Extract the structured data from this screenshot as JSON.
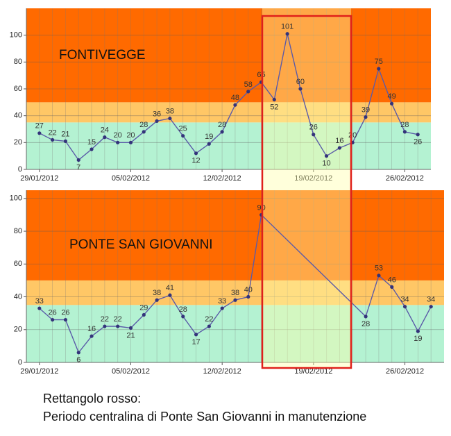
{
  "chart_data": [
    {
      "type": "line",
      "title": "FONTIVEGGE",
      "x": [
        "29/01/2012",
        "30/01/2012",
        "31/01/2012",
        "01/02/2012",
        "02/02/2012",
        "03/02/2012",
        "04/02/2012",
        "05/02/2012",
        "06/02/2012",
        "07/02/2012",
        "08/02/2012",
        "09/02/2012",
        "10/02/2012",
        "11/02/2012",
        "12/02/2012",
        "13/02/2012",
        "14/02/2012",
        "15/02/2012",
        "16/02/2012",
        "17/02/2012",
        "18/02/2012",
        "19/02/2012",
        "20/02/2012",
        "21/02/2012",
        "22/02/2012",
        "23/02/2012",
        "24/02/2012",
        "25/02/2012",
        "26/02/2012",
        "27/02/2012"
      ],
      "values": [
        27,
        22,
        21,
        7,
        15,
        24,
        20,
        20,
        28,
        36,
        38,
        25,
        12,
        19,
        28,
        48,
        58,
        65,
        52,
        101,
        60,
        26,
        10,
        16,
        20,
        39,
        75,
        49,
        28,
        26
      ],
      "color": "#5b5ba8",
      "xlim": [
        "28/01/2012",
        "28/02/2012"
      ],
      "xticks": [
        "29/01/2012",
        "05/02/2012",
        "12/02/2012",
        "19/02/2012",
        "26/02/2012"
      ],
      "ylim": [
        0,
        120
      ],
      "yticks": [
        0,
        20,
        40,
        60,
        80,
        100
      ],
      "grid": true,
      "bands": [
        {
          "from": 0,
          "to": 35,
          "color": "#b4f2d2"
        },
        {
          "from": 35,
          "to": 50,
          "color": "#ffc766"
        },
        {
          "from": 50,
          "to": 120,
          "color": "#ff6a00"
        }
      ]
    },
    {
      "type": "line",
      "title": "PONTE SAN GIOVANNI",
      "x": [
        "29/01/2012",
        "30/01/2012",
        "31/01/2012",
        "01/02/2012",
        "02/02/2012",
        "03/02/2012",
        "04/02/2012",
        "05/02/2012",
        "06/02/2012",
        "07/02/2012",
        "08/02/2012",
        "09/02/2012",
        "10/02/2012",
        "11/02/2012",
        "12/02/2012",
        "13/02/2012",
        "14/02/2012",
        "15/02/2012",
        "23/02/2012",
        "24/02/2012",
        "25/02/2012",
        "26/02/2012",
        "27/02/2012",
        "28/02/2012"
      ],
      "values": [
        33,
        26,
        26,
        6,
        16,
        22,
        22,
        21,
        29,
        38,
        41,
        28,
        17,
        22,
        33,
        38,
        40,
        90,
        28,
        53,
        46,
        34,
        19,
        34
      ],
      "color": "#5b5ba8",
      "xlim": [
        "28/01/2012",
        "29/02/2012"
      ],
      "xticks": [
        "29/01/2012",
        "05/02/2012",
        "12/02/2012",
        "19/02/2012",
        "26/02/2012"
      ],
      "ylim": [
        0,
        105
      ],
      "yticks": [
        0,
        20,
        40,
        60,
        80,
        100
      ],
      "grid": true,
      "bands": [
        {
          "from": 0,
          "to": 35,
          "color": "#b4f2d2"
        },
        {
          "from": 35,
          "to": 50,
          "color": "#ffc766"
        },
        {
          "from": 50,
          "to": 105,
          "color": "#ff6a00"
        }
      ]
    }
  ],
  "caption": [
    "Rettangolo rosso:",
    "Periodo centralina di Ponte San Giovanni in manutenzione"
  ]
}
